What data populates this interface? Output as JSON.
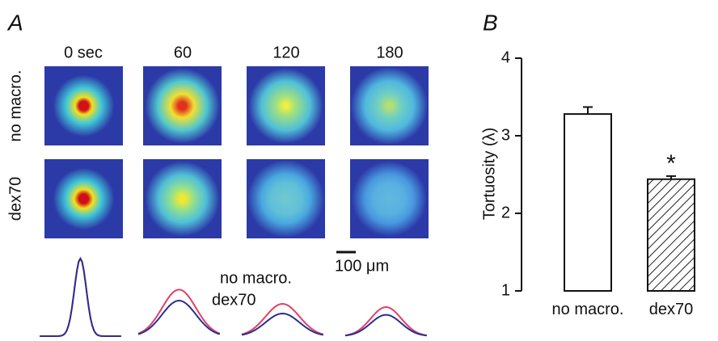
{
  "panel_a": {
    "label": "A",
    "times": [
      "0 sec",
      "60",
      "120",
      "180"
    ],
    "rows": [
      "no macro.",
      "dex70"
    ],
    "row_colors": [
      "#e0406a",
      "#2b2f8c"
    ],
    "legend": [
      "no macro.",
      "dex70"
    ],
    "scale_bar": "100 μm"
  },
  "chart_data": {
    "type": "bar",
    "panel_label": "B",
    "ylabel": "Tortuosity (λ)",
    "categories": [
      "no macro.",
      "dex70"
    ],
    "values": [
      3.28,
      2.44
    ],
    "errors": [
      0.09,
      0.04
    ],
    "hatched": [
      false,
      true
    ],
    "annotation": "*",
    "ylim": [
      1,
      4
    ],
    "yticks": [
      1,
      2,
      3,
      4
    ]
  }
}
